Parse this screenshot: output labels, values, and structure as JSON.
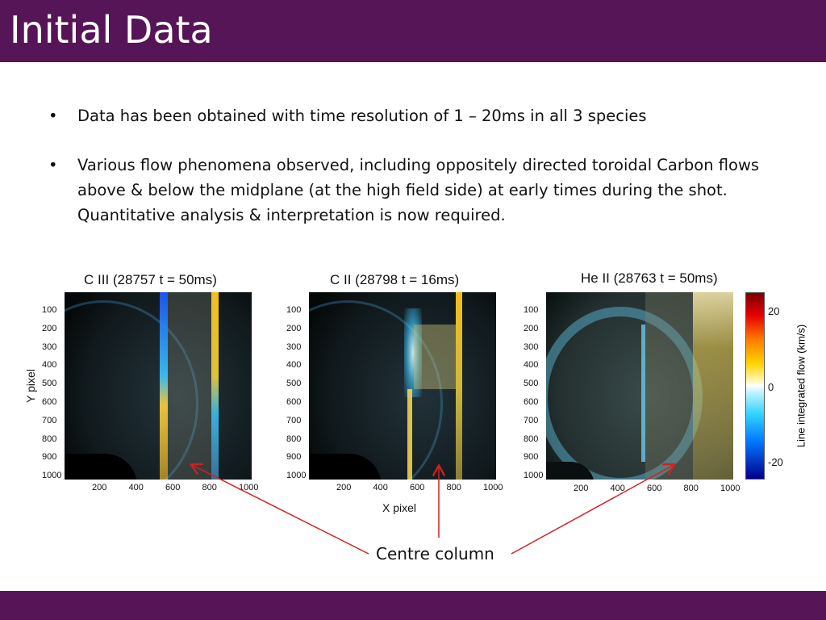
{
  "slide": {
    "title": "Initial Data",
    "bullets": [
      "Data has been obtained with time resolution of 1 – 20ms in all 3 species",
      "Various flow phenomena observed, including oppositely directed toroidal Carbon flows above & below the midplane (at the high field side) at early times during the shot. Quantitative analysis & interpretation is now required."
    ]
  },
  "colors": {
    "bar": "#561556",
    "arrow": "#d42020"
  },
  "figure": {
    "panels": [
      {
        "title": "C III (28757 t = 50ms)"
      },
      {
        "title": "C II  (28798 t = 16ms)"
      },
      {
        "title": "He II (28763 t = 50ms)"
      }
    ],
    "y_ticks": [
      "100",
      "200",
      "300",
      "400",
      "500",
      "600",
      "700",
      "800",
      "900",
      "1000"
    ],
    "x_ticks": [
      "200",
      "400",
      "600",
      "800",
      "1000"
    ],
    "ylabel": "Y pixel",
    "xlabel": "X pixel",
    "colorbar": {
      "label": "Line integrated flow (km/s)",
      "ticks": [
        "20",
        "0",
        "-20"
      ]
    },
    "callout": "Centre column"
  }
}
